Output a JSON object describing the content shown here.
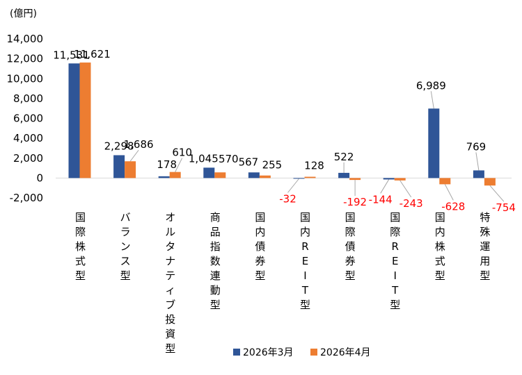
{
  "chart_data": {
    "type": "bar",
    "unit_label": "(億円)",
    "ylim": [
      -2000,
      14000
    ],
    "yticks": [
      "-2,000",
      "0",
      "2,000",
      "4,000",
      "6,000",
      "8,000",
      "10,000",
      "12,000",
      "14,000"
    ],
    "ytick_values": [
      -2000,
      0,
      2000,
      4000,
      6000,
      8000,
      10000,
      12000,
      14000
    ],
    "grid": false,
    "legend_position": "bottom-right",
    "categories": [
      "国際株式型",
      "バランス型",
      "オルタナティブ投資型",
      "商品指数連動型",
      "国内債券型",
      "国内REIT型",
      "国際債券型",
      "国際REIT型",
      "国内株式型",
      "特殊運用型"
    ],
    "series": [
      {
        "name": "2026年3月",
        "color": "#2f5597",
        "values": [
          11531,
          2298,
          178,
          1045,
          567,
          -32,
          522,
          -144,
          6989,
          769
        ],
        "labels": [
          "11,531",
          "2,298",
          "178",
          "1,045",
          "567",
          "-32",
          "522",
          "-144",
          "6,989",
          "769"
        ]
      },
      {
        "name": "2026年4月",
        "color": "#ed7d31",
        "values": [
          11621,
          1686,
          610,
          570,
          255,
          128,
          -192,
          -243,
          -628,
          -754
        ],
        "labels": [
          "11,621",
          "1,686",
          "610",
          "570",
          "255",
          "128",
          "-192",
          "-243",
          "-628",
          "-754"
        ]
      }
    ],
    "negative_label_color": "#ff0000"
  }
}
